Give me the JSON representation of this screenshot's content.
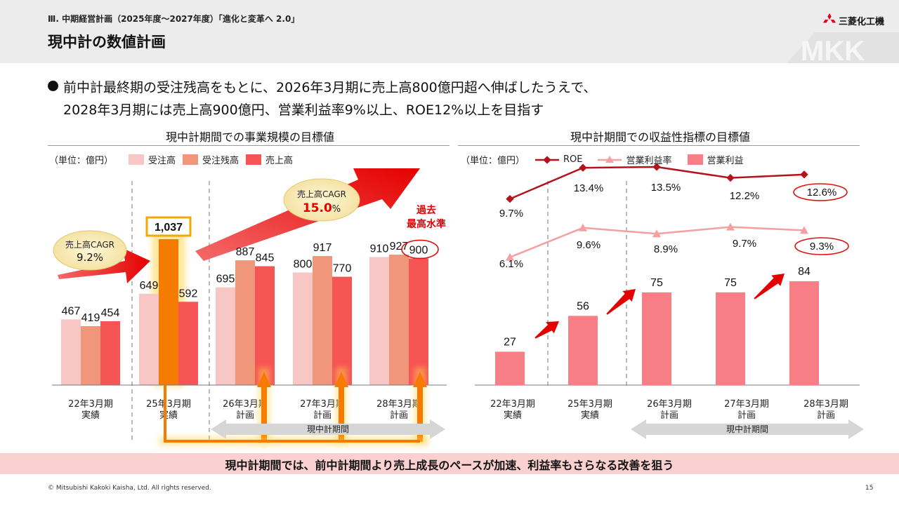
{
  "header": {
    "breadcrumb": "Ⅲ. 中期経営計画（2025年度～2027年度）「進化と変革へ 2.0」",
    "title": "現中計の数値計画",
    "logo_text": "三菱化工機",
    "watermark": "MKK"
  },
  "bullet": {
    "line1": "前中計最終期の受注残高をもとに、2026年3月期に売上高800億円超へ伸ばしたうえで、",
    "line2": "2028年3月期には売上高900億円、営業利益率9%以上、ROE12%以上を目指す"
  },
  "colors": {
    "orders": "#f9c6c6",
    "backlog": "#f0967a",
    "sales": "#f55555",
    "backlog_highlight": "#f57c00",
    "roe": "#b3141b",
    "margin": "#f4a0a0",
    "profit": "#f77f85",
    "arrow_red": "#e50000",
    "arrow_glow": "#ffb800",
    "banner": "#fbd0d0"
  },
  "chart_data": [
    {
      "type": "bar",
      "title": "現中計期間での事業規模の目標値",
      "unit": "（単位：億円）",
      "categories": [
        [
          "22年3月期",
          "実績"
        ],
        [
          "25年3月期",
          "実績"
        ],
        [
          "26年3月期",
          "計画"
        ],
        [
          "27年3月期",
          "計画"
        ],
        [
          "28年3月期",
          "計画"
        ]
      ],
      "series": [
        {
          "name": "受注高",
          "values": [
            467,
            649,
            695,
            800,
            910
          ]
        },
        {
          "name": "受注残高",
          "values": [
            419,
            1037,
            887,
            917,
            927
          ]
        },
        {
          "name": "売上高",
          "values": [
            454,
            592,
            845,
            770,
            900
          ]
        }
      ],
      "ylim": [
        0,
        1100
      ],
      "value_labels": [
        [
          "467",
          "419",
          "454"
        ],
        [
          "649",
          "1,037",
          "592"
        ],
        [
          "695",
          "887",
          "845"
        ],
        [
          "800",
          "917",
          "770"
        ],
        [
          "910",
          "927",
          "900"
        ]
      ],
      "annotations": {
        "cagr_past_label": "売上高CAGR",
        "cagr_past_value": "9.2%",
        "cagr_plan_label": "売上高CAGR",
        "cagr_plan_value": "15.0",
        "cagr_plan_unit": "%",
        "record_high_line1": "過去",
        "record_high_line2": "最高水準",
        "period_label": "現中計期間"
      }
    },
    {
      "type": "bar",
      "title": "現中計期間での収益性指標の目標値",
      "unit": "（単位：億円）",
      "categories": [
        [
          "22年3月期",
          "実績"
        ],
        [
          "25年3月期",
          "実績"
        ],
        [
          "26年3月期",
          "計画"
        ],
        [
          "27年3月期",
          "計画"
        ],
        [
          "28年3月期",
          "計画"
        ]
      ],
      "series": [
        {
          "name": "営業利益",
          "type": "bar",
          "values": [
            27,
            56,
            75,
            75,
            84
          ],
          "labels": [
            "27",
            "56",
            "75",
            "75",
            "84"
          ]
        },
        {
          "name": "ROE",
          "type": "line",
          "values": [
            9.7,
            13.4,
            13.5,
            12.2,
            12.6
          ],
          "labels": [
            "9.7%",
            "13.4%",
            "13.5%",
            "12.2%",
            "12.6%"
          ]
        },
        {
          "name": "営業利益率",
          "type": "line",
          "values": [
            6.1,
            9.6,
            8.9,
            9.7,
            9.3
          ],
          "labels": [
            "6.1%",
            "9.6%",
            "8.9%",
            "9.7%",
            "9.3%"
          ]
        }
      ],
      "legend_order": [
        "ROE",
        "営業利益率",
        "営業利益"
      ],
      "ylim": [
        0,
        100
      ],
      "annotations": {
        "period_label": "現中計期間"
      }
    }
  ],
  "banner": {
    "text": "現中計期間では、前中計期間より売上成長のペースが加速、利益率もさらなる改善を狙う"
  },
  "footer": {
    "copyright": "© Mitsubishi Kakoki Kaisha, Ltd. All rights reserved.",
    "page": "15"
  }
}
